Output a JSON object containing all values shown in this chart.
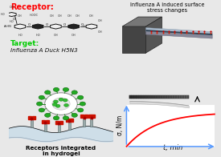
{
  "bg_color": "#e8e8e8",
  "top_left_title": "Receptor:",
  "top_left_title_color": "#ff0000",
  "target_label": "Target:",
  "target_label_color": "#00cc00",
  "target_text": "Influenza A Duck H5N3",
  "top_right_title": "Influenza A induced surface\nstress changes",
  "bottom_left_label": "Receptors integrated\nin hydrogel",
  "xlabel": "t, min",
  "ylabel": "σ, N/m",
  "curve_color": "#ff0000",
  "axis_color": "#5599ff",
  "plot_bg": "#ffffff"
}
